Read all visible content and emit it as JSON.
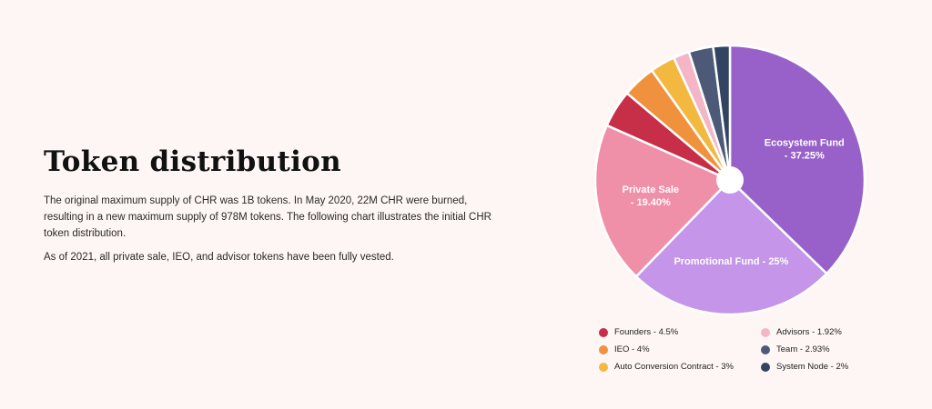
{
  "section": {
    "title": "Token distribution",
    "paragraphs": [
      "The original maximum supply of CHR was 1B tokens. In May 2020, 22M CHR were burned, resulting in a new maximum supply of 978M tokens. The following chart illustrates the initial CHR token distribution.",
      "As of 2021, all private sale, IEO, and advisor tokens have been fully vested."
    ]
  },
  "chart_data": {
    "type": "pie",
    "title": "",
    "start_angle_deg": 0,
    "direction": "clockwise",
    "donut_hole": true,
    "slices": [
      {
        "name": "Ecosystem Fund",
        "value": 37.25,
        "color": "#9861c9",
        "label": "Ecosystem Fund - 37.25%",
        "label_lines": [
          "Ecosystem Fund",
          "- 37.25%"
        ]
      },
      {
        "name": "Promotional Fund",
        "value": 25,
        "color": "#c495e8",
        "label": "Promotional Fund - 25%",
        "label_lines": [
          "Promotional Fund - 25%"
        ]
      },
      {
        "name": "Private Sale",
        "value": 19.4,
        "color": "#ef8fa8",
        "label": "Private Sale - 19.40%",
        "label_lines": [
          "Private Sale",
          "- 19.40%"
        ]
      },
      {
        "name": "Founders",
        "value": 4.5,
        "color": "#c72e48",
        "legend": "Founders - 4.5%"
      },
      {
        "name": "IEO",
        "value": 4,
        "color": "#f0923d",
        "legend": "IEO - 4%"
      },
      {
        "name": "Auto Conversion Contract",
        "value": 3,
        "color": "#f3b83f",
        "legend": "Auto Conversion Contract - 3%"
      },
      {
        "name": "Advisors",
        "value": 1.92,
        "color": "#f4b6c6",
        "legend": "Advisors - 1.92%"
      },
      {
        "name": "Team",
        "value": 2.93,
        "color": "#4d5a77",
        "legend": "Team - 2.93%"
      },
      {
        "name": "System Node",
        "value": 2,
        "color": "#334463",
        "legend": "System Node - 2%"
      }
    ],
    "legend": {
      "placement": "bottom",
      "left_column": [
        "Founders - 4.5%",
        "IEO - 4%",
        "Auto Conversion Contract - 3%"
      ],
      "right_column": [
        "Advisors - 1.92%",
        "Team - 2.93%",
        "System Node - 2%"
      ]
    }
  }
}
